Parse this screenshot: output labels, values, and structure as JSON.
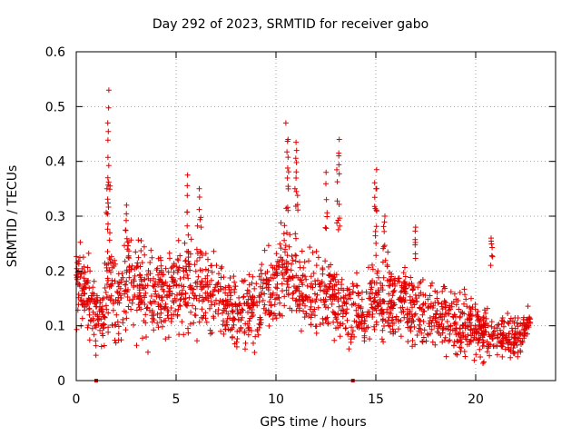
{
  "chart_data": {
    "type": "scatter",
    "title": "Day 292 of 2023, SRMTID for receiver gabo",
    "xlabel": "GPS time / hours",
    "ylabel": "SRMTID / TECUs",
    "xlim": [
      0,
      24
    ],
    "ylim": [
      0,
      0.6
    ],
    "xticks": [
      0,
      5,
      10,
      15,
      20
    ],
    "yticks": [
      0,
      0.1,
      0.2,
      0.3,
      0.4,
      0.5,
      0.6
    ],
    "xtick_labels": [
      "0",
      "5",
      "10",
      "15",
      "20"
    ],
    "ytick_labels": [
      "0",
      "0.1",
      "0.2",
      "0.3",
      "0.4",
      "0.5",
      "0.6"
    ],
    "grid": true,
    "marker": "+",
    "marker_color": "#e00000",
    "series": [
      {
        "name": "SRMTID",
        "envelope_x": [
          0,
          0.3,
          0.6,
          1.0,
          1.4,
          1.6,
          2.0,
          2.6,
          3.5,
          4.5,
          5.5,
          6.2,
          7.0,
          8.0,
          9.0,
          10.0,
          10.5,
          11.0,
          12.0,
          12.8,
          13.5,
          14.0,
          15.0,
          16.0,
          17.0,
          18.0,
          19.0,
          20.0,
          21.0,
          22.0,
          22.8
        ],
        "envelope_median": [
          0.2,
          0.17,
          0.15,
          0.11,
          0.13,
          0.2,
          0.14,
          0.18,
          0.16,
          0.15,
          0.18,
          0.17,
          0.14,
          0.12,
          0.13,
          0.17,
          0.2,
          0.17,
          0.15,
          0.16,
          0.13,
          0.11,
          0.15,
          0.14,
          0.13,
          0.12,
          0.11,
          0.1,
          0.08,
          0.08,
          0.11
        ],
        "envelope_spread": [
          0.07,
          0.05,
          0.05,
          0.05,
          0.05,
          0.08,
          0.06,
          0.07,
          0.06,
          0.06,
          0.07,
          0.07,
          0.06,
          0.05,
          0.06,
          0.06,
          0.07,
          0.06,
          0.06,
          0.06,
          0.05,
          0.05,
          0.06,
          0.06,
          0.05,
          0.05,
          0.05,
          0.04,
          0.03,
          0.03,
          0.02
        ],
        "n_points": 1900,
        "seed": 292,
        "peaks": [
          {
            "x": 1.65,
            "y": 0.53
          },
          {
            "x": 1.6,
            "y": 0.47
          },
          {
            "x": 1.55,
            "y": 0.37
          },
          {
            "x": 2.5,
            "y": 0.32
          },
          {
            "x": 5.6,
            "y": 0.375
          },
          {
            "x": 6.2,
            "y": 0.35
          },
          {
            "x": 10.55,
            "y": 0.47
          },
          {
            "x": 10.6,
            "y": 0.44
          },
          {
            "x": 11.05,
            "y": 0.435
          },
          {
            "x": 11.0,
            "y": 0.42
          },
          {
            "x": 12.5,
            "y": 0.38
          },
          {
            "x": 13.2,
            "y": 0.44
          },
          {
            "x": 13.1,
            "y": 0.41
          },
          {
            "x": 15.0,
            "y": 0.385
          },
          {
            "x": 15.0,
            "y": 0.35
          },
          {
            "x": 15.4,
            "y": 0.3
          },
          {
            "x": 17.0,
            "y": 0.28
          },
          {
            "x": 20.8,
            "y": 0.26
          }
        ]
      }
    ],
    "gap_markers": [
      1.0,
      13.85
    ]
  }
}
